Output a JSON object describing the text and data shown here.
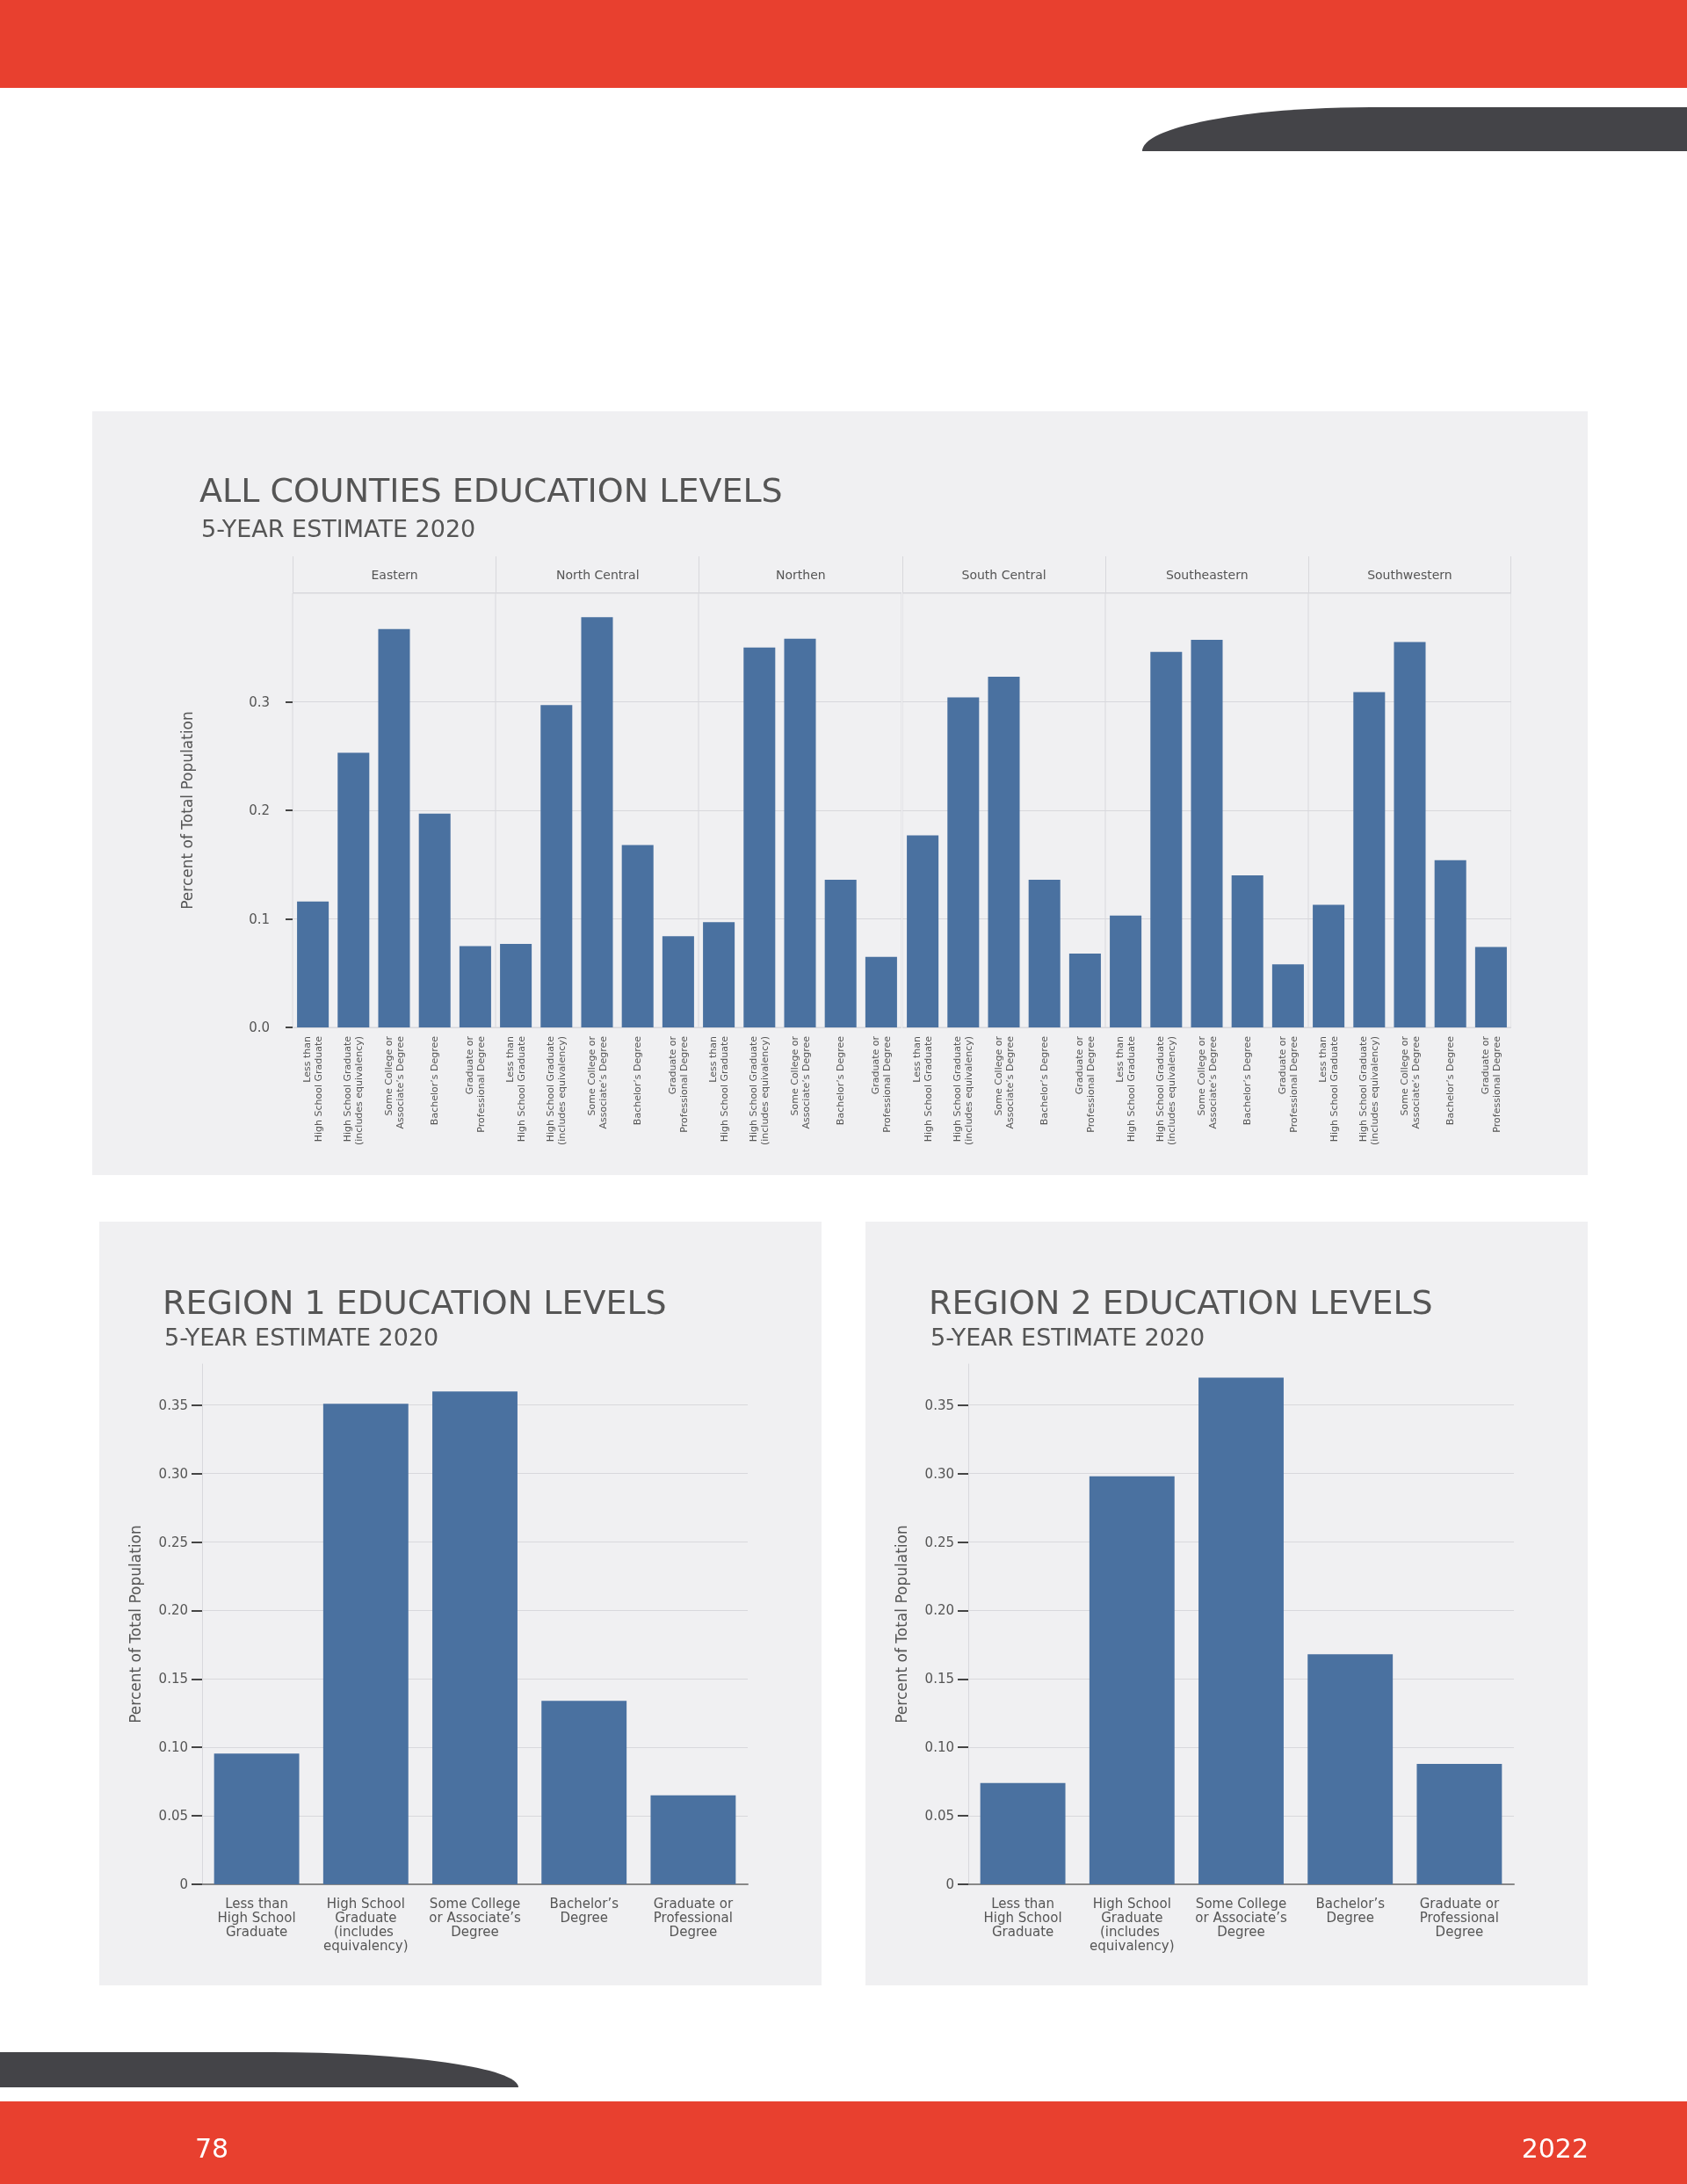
{
  "chart_data": [
    {
      "type": "bar",
      "title": "ALL COUNTIES EDUCATION LEVELS",
      "subtitle": "5-YEAR ESTIMATE 2020",
      "ylabel": "Percent of Total Population",
      "annotations": [
        "Eastern"
      ],
      "categories": [
        "Less than\nHigh School Graduate",
        "High School Graduate\n(includes equivalency)",
        "Some College or\nAssociate’s Degree",
        "Bachelor’s Degree",
        "Graduate or\nProfessional Degree"
      ],
      "values": [
        0.116,
        0.253,
        0.367,
        0.197,
        0.075
      ],
      "color": "#4a71a0",
      "ylim": [
        0,
        0.4
      ],
      "yticks": [
        {
          "value": 0,
          "label": "0.0"
        },
        0.1,
        0.2,
        0.3
      ],
      "grid": "y"
    },
    {
      "type": "bar",
      "annotations": [
        "North Central"
      ],
      "categories": [
        "Less than\nHigh School Graduate",
        "High School Graduate\n(includes equivalency)",
        "Some College or\nAssociate’s Degree",
        "Bachelor’s Degree",
        "Graduate or\nProfessional Degree"
      ],
      "values": [
        0.077,
        0.297,
        0.378,
        0.168,
        0.084
      ],
      "color": "#4a71a0",
      "ylim": [
        0,
        0.4
      ],
      "yticks": [
        0,
        0.1,
        0.2,
        0.3
      ],
      "grid": "y",
      "tick_labels": "x"
    },
    {
      "type": "bar",
      "annotations": [
        "Northen"
      ],
      "categories": [
        "Less than\nHigh School Graduate",
        "High School Graduate\n(includes equivalency)",
        "Some College or\nAssociate’s Degree",
        "Bachelor’s Degree",
        "Graduate or\nProfessional Degree"
      ],
      "values": [
        0.097,
        0.35,
        0.358,
        0.136,
        0.065
      ],
      "color": "#4a71a0",
      "ylim": [
        0,
        0.4
      ],
      "yticks": [
        0,
        0.1,
        0.2,
        0.3
      ],
      "grid": "y",
      "tick_labels": "x"
    },
    {
      "type": "bar",
      "annotations": [
        "South Central"
      ],
      "categories": [
        "Less than\nHigh School Graduate",
        "High School Graduate\n(includes equivalency)",
        "Some College or\nAssociate’s Degree",
        "Bachelor’s Degree",
        "Graduate or\nProfessional Degree"
      ],
      "values": [
        0.177,
        0.304,
        0.323,
        0.136,
        0.068
      ],
      "color": "#4a71a0",
      "ylim": [
        0,
        0.4
      ],
      "yticks": [
        0,
        0.1,
        0.2,
        0.3
      ],
      "grid": "y",
      "tick_labels": "x"
    },
    {
      "type": "bar",
      "annotations": [
        "Southeastern"
      ],
      "categories": [
        "Less than\nHigh School Graduate",
        "High School Graduate\n(includes equivalency)",
        "Some College or\nAssociate’s Degree",
        "Bachelor’s Degree",
        "Graduate or\nProfessional Degree"
      ],
      "values": [
        0.103,
        0.346,
        0.357,
        0.14,
        0.058
      ],
      "color": "#4a71a0",
      "ylim": [
        0,
        0.4
      ],
      "yticks": [
        0,
        0.1,
        0.2,
        0.3
      ],
      "grid": "y",
      "tick_labels": "x"
    },
    {
      "type": "bar",
      "annotations": [
        "Southwestern"
      ],
      "categories": [
        "Less than\nHigh School Graduate",
        "High School Graduate\n(includes equivalency)",
        "Some College or\nAssociate’s Degree",
        "Bachelor’s Degree",
        "Graduate or\nProfessional Degree"
      ],
      "values": [
        0.113,
        0.309,
        0.355,
        0.154,
        0.074
      ],
      "color": "#4a71a0",
      "ylim": [
        0,
        0.4
      ],
      "yticks": [
        0,
        0.1,
        0.2,
        0.3
      ],
      "grid": "y",
      "tick_labels": "x"
    },
    {
      "type": "bar",
      "title": "REGION 1 EDUCATION LEVELS",
      "subtitle": "5-YEAR ESTIMATE 2020",
      "ylabel": "Percent of Total Population",
      "categories": [
        "Less than\nHigh School\nGraduate",
        "High School\nGraduate\n(includes equivalency)",
        "Some College\nor Associate’s\nDegree",
        "Bachelor’s\nDegree",
        "Graduate or\nProfessional\nDegree"
      ],
      "values": [
        0.0955,
        0.351,
        0.36,
        0.134,
        0.065
      ],
      "color": "#4a71a0",
      "ylim": [
        0,
        0.38
      ],
      "yticks": [
        0,
        0.05,
        {
          "value": 0.1,
          "label": "0.10"
        },
        0.15,
        {
          "value": 0.2,
          "label": "0.20"
        },
        0.25,
        {
          "value": 0.3,
          "label": "0.30"
        },
        0.35
      ],
      "grid": "y"
    },
    {
      "type": "bar",
      "title": "REGION 2 EDUCATION LEVELS",
      "subtitle": "5-YEAR ESTIMATE 2020",
      "ylabel": "Percent of Total Population",
      "annotations": [
        "78",
        "2022"
      ],
      "categories": [
        "Less than\nHigh School\nGraduate",
        "High School\nGraduate\n(includes equivalency)",
        "Some College\nor Associate’s\nDegree",
        "Bachelor’s\nDegree",
        "Graduate or\nProfessional\nDegree"
      ],
      "values": [
        0.074,
        0.298,
        0.37,
        0.168,
        0.088
      ],
      "color": "#4a71a0",
      "ylim": [
        0,
        0.38
      ],
      "yticks": [
        0,
        0.05,
        {
          "value": 0.1,
          "label": "0.10"
        },
        0.15,
        {
          "value": 0.2,
          "label": "0.20"
        },
        0.25,
        {
          "value": 0.3,
          "label": "0.30"
        },
        0.35
      ],
      "grid": "y"
    }
  ]
}
